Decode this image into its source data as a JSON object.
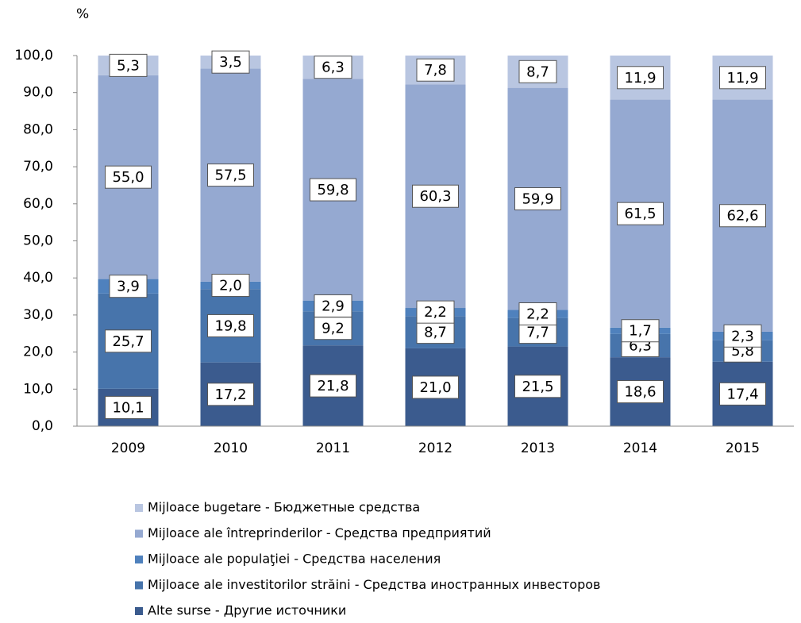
{
  "chart_data": {
    "type": "stacked_bar",
    "y_label": "%",
    "categories": [
      "2009",
      "2010",
      "2011",
      "2012",
      "2013",
      "2014",
      "2015"
    ],
    "series": [
      {
        "name": "Alte surse - Другие источники",
        "color": "#3b5b8e",
        "values": [
          10.1,
          17.2,
          21.8,
          21.0,
          21.5,
          18.6,
          17.4
        ],
        "value_labels": [
          "10,1",
          "17,2",
          "21,8",
          "21,0",
          "21,5",
          "18,6",
          "17,4"
        ]
      },
      {
        "name": "Mijloace ale investitorilor străini - Средства иностранных инвесторов",
        "color": "#4774ab",
        "values": [
          25.7,
          19.8,
          9.2,
          8.7,
          7.7,
          6.3,
          5.8
        ],
        "value_labels": [
          "25,7",
          "19,8",
          "9,2",
          "8,7",
          "7,7",
          "6,3",
          "5,8"
        ]
      },
      {
        "name": "Mijloace ale populaţiei - Средства населения",
        "color": "#4f81bd",
        "values": [
          3.9,
          2.0,
          2.9,
          2.2,
          2.2,
          1.7,
          2.3
        ],
        "value_labels": [
          "3,9",
          "2,0",
          "2,9",
          "2,2",
          "2,2",
          "1,7",
          "2,3"
        ]
      },
      {
        "name": "Mijloace ale întreprinderilor - Средства предприятий",
        "color": "#95a9d1",
        "values": [
          55.0,
          57.5,
          59.8,
          60.3,
          59.9,
          61.5,
          62.6
        ],
        "value_labels": [
          "55,0",
          "57,5",
          "59,8",
          "60,3",
          "59,9",
          "61,5",
          "62,6"
        ]
      },
      {
        "name": "Mijloace bugetare - Бюджетные средства",
        "color": "#b9c6e1",
        "values": [
          5.3,
          3.5,
          6.3,
          7.8,
          8.7,
          11.9,
          11.9
        ],
        "value_labels": [
          "5,3",
          "3,5",
          "6,3",
          "7,8",
          "8,7",
          "11,9",
          "11,9"
        ]
      }
    ],
    "ylim": [
      0,
      100
    ],
    "yticks": [
      {
        "value": 0,
        "label": "0,0"
      },
      {
        "value": 10,
        "label": "10,0"
      },
      {
        "value": 20,
        "label": "20,0"
      },
      {
        "value": 30,
        "label": "30,0"
      },
      {
        "value": 40,
        "label": "40,0"
      },
      {
        "value": 50,
        "label": "50,0"
      },
      {
        "value": 60,
        "label": "60,0"
      },
      {
        "value": 70,
        "label": "70,0"
      },
      {
        "value": 80,
        "label": "80,0"
      },
      {
        "value": 90,
        "label": "90,0"
      },
      {
        "value": 100,
        "label": "100,0"
      }
    ],
    "legend": "bottom"
  }
}
